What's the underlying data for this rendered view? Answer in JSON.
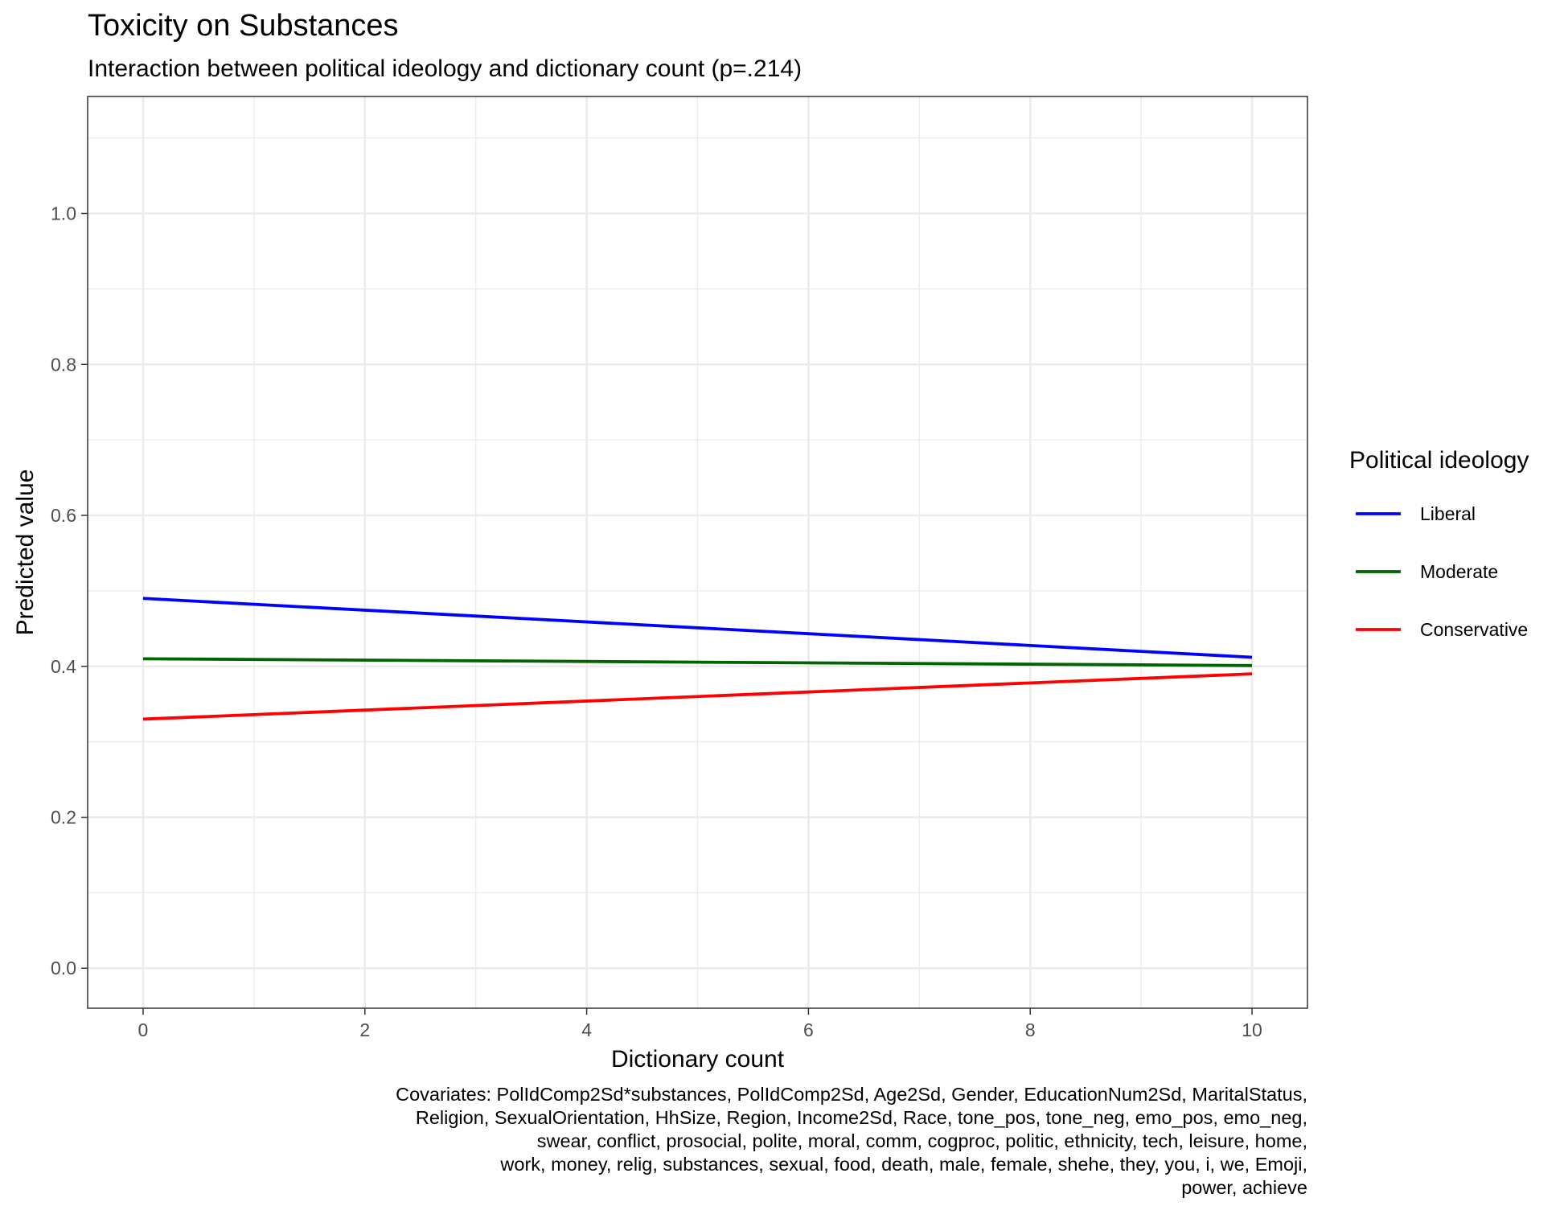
{
  "chart_data": {
    "type": "line",
    "title": "Toxicity on Substances",
    "subtitle": "Interaction between political ideology and dictionary count (p=.214)",
    "xlabel": "Dictionary count",
    "ylabel": "Predicted value",
    "xlim": [
      -0.5,
      10.5
    ],
    "ylim": [
      -0.053,
      1.155
    ],
    "x_ticks": [
      0,
      2,
      4,
      6,
      8,
      10
    ],
    "x_tick_labels": [
      "0",
      "2",
      "4",
      "6",
      "8",
      "10"
    ],
    "y_ticks": [
      0.0,
      0.2,
      0.4,
      0.6,
      0.8,
      1.0
    ],
    "y_tick_labels": [
      "0.0",
      "0.2",
      "0.4",
      "0.6",
      "0.8",
      "1.0"
    ],
    "grid": true,
    "legend": {
      "title": "Political ideology",
      "position": "right"
    },
    "series": [
      {
        "name": "Liberal",
        "color": "#0000ff",
        "x": [
          0,
          10
        ],
        "y": [
          0.49,
          0.412
        ]
      },
      {
        "name": "Moderate",
        "color": "#006400",
        "x": [
          0,
          10
        ],
        "y": [
          0.41,
          0.401
        ]
      },
      {
        "name": "Conservative",
        "color": "#ff0000",
        "x": [
          0,
          10
        ],
        "y": [
          0.33,
          0.39
        ]
      }
    ],
    "caption": [
      "Covariates: PolIdComp2Sd*substances, PolIdComp2Sd, Age2Sd, Gender, EducationNum2Sd, MaritalStatus,",
      "Religion, SexualOrientation, HhSize, Region, Income2Sd, Race, tone_pos, tone_neg, emo_pos, emo_neg,",
      "swear, conflict, prosocial, polite, moral, comm, cogproc, politic, ethnicity, tech, leisure, home,",
      "work, money, relig, substances, sexual, food, death, male, female, shehe, they, you, i, we, Emoji,",
      "power, achieve"
    ]
  }
}
